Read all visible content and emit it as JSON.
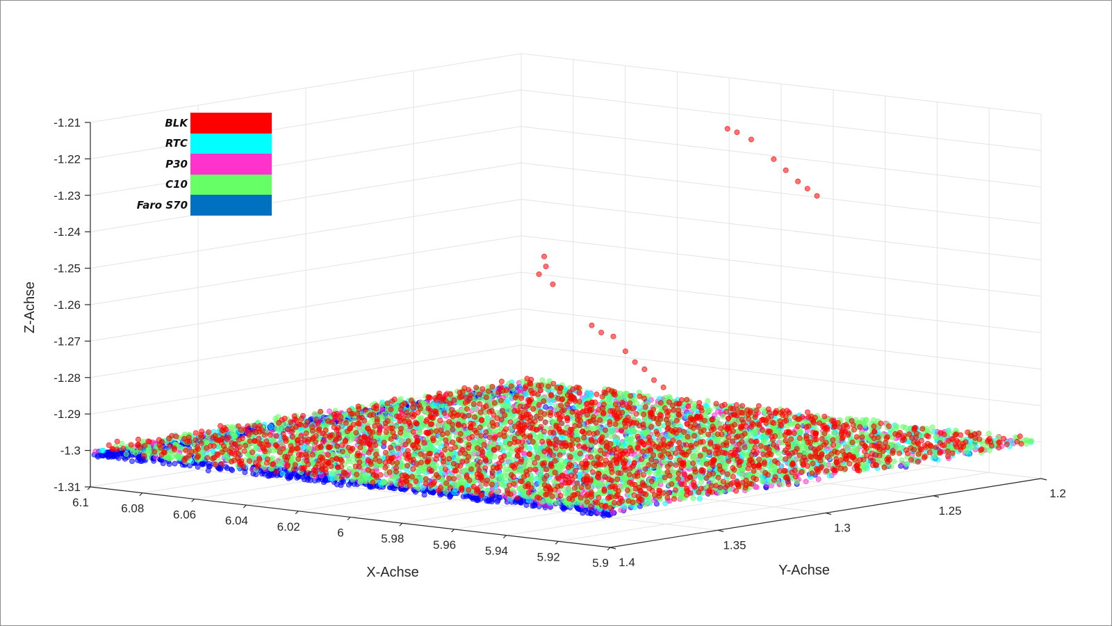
{
  "chart_data": {
    "type": "scatter",
    "projection": "3d",
    "xlabel": "X-Achse",
    "ylabel": "Y-Achse",
    "zlabel": "Z-Achse",
    "xlim": [
      5.9,
      6.1
    ],
    "ylim": [
      1.2,
      1.4
    ],
    "zlim": [
      -1.31,
      -1.21
    ],
    "grid": true,
    "legend_position": "top-left",
    "x_ticks": [
      "6.1",
      "6.08",
      "6.06",
      "6.04",
      "6.02",
      "6",
      "5.98",
      "5.96",
      "5.94",
      "5.92",
      "5.9"
    ],
    "y_ticks": [
      "1.2",
      "1.25",
      "1.3",
      "1.35",
      "1.4"
    ],
    "z_ticks": [
      "-1.21",
      "-1.22",
      "-1.23",
      "-1.24",
      "-1.25",
      "-1.26",
      "-1.27",
      "-1.28",
      "-1.29",
      "-1.3",
      "-1.31"
    ],
    "series": [
      {
        "name": "BLK",
        "color": "#ff0000",
        "z_mean": -1.2995,
        "z_spread": 0.0015,
        "outliers": [
          {
            "x": 5.99,
            "y": 1.237,
            "z": -1.218
          },
          {
            "x": 5.988,
            "y": 1.235,
            "z": -1.219
          },
          {
            "x": 5.985,
            "y": 1.232,
            "z": -1.221
          },
          {
            "x": 5.978,
            "y": 1.23,
            "z": -1.226
          },
          {
            "x": 5.975,
            "y": 1.228,
            "z": -1.229
          },
          {
            "x": 5.972,
            "y": 1.226,
            "z": -1.232
          },
          {
            "x": 5.97,
            "y": 1.224,
            "z": -1.234
          },
          {
            "x": 5.968,
            "y": 1.222,
            "z": -1.236
          },
          {
            "x": 6.0,
            "y": 1.31,
            "z": -1.247
          },
          {
            "x": 6.001,
            "y": 1.308,
            "z": -1.25
          },
          {
            "x": 6.002,
            "y": 1.31,
            "z": -1.252
          },
          {
            "x": 6.0,
            "y": 1.306,
            "z": -1.255
          },
          {
            "x": 5.99,
            "y": 1.3,
            "z": -1.266
          },
          {
            "x": 5.988,
            "y": 1.298,
            "z": -1.268
          },
          {
            "x": 5.985,
            "y": 1.296,
            "z": -1.269
          },
          {
            "x": 5.982,
            "y": 1.294,
            "z": -1.273
          },
          {
            "x": 5.98,
            "y": 1.292,
            "z": -1.276
          },
          {
            "x": 5.978,
            "y": 1.29,
            "z": -1.278
          },
          {
            "x": 5.976,
            "y": 1.288,
            "z": -1.281
          },
          {
            "x": 5.974,
            "y": 1.286,
            "z": -1.283
          }
        ]
      },
      {
        "name": "RTC",
        "color": "#00ffff",
        "z_mean": -1.3,
        "z_spread": 0.001
      },
      {
        "name": "P30",
        "color": "#ff33cc",
        "z_mean": -1.3002,
        "z_spread": 0.001
      },
      {
        "name": "C10",
        "color": "#66ff66",
        "z_mean": -1.2996,
        "z_spread": 0.0013
      },
      {
        "name": "Faro S70",
        "color": "#0070c0",
        "point_color": "#0000ff",
        "z_mean": -1.3012,
        "z_spread": 0.0008
      }
    ]
  },
  "legend": {
    "items": [
      {
        "label": "BLK",
        "color": "#ff0000"
      },
      {
        "label": "RTC",
        "color": "#00ffff"
      },
      {
        "label": "P30",
        "color": "#ff33cc"
      },
      {
        "label": "C10",
        "color": "#66ff66"
      },
      {
        "label": "Faro S70",
        "color": "#0070c0"
      }
    ]
  }
}
